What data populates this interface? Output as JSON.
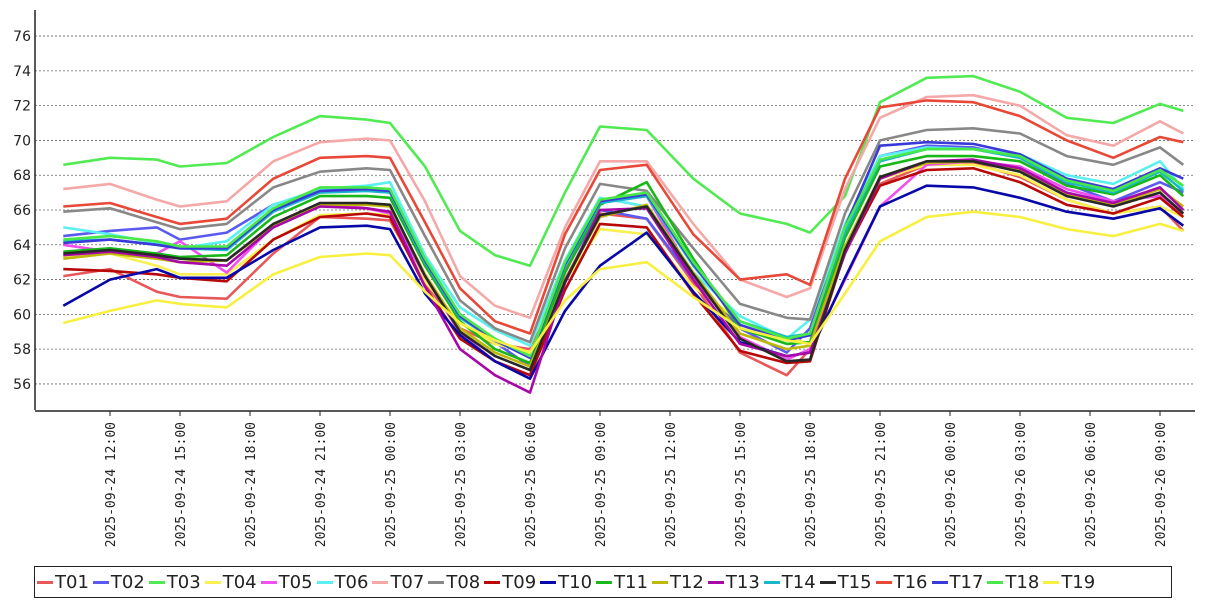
{
  "chart_data": {
    "type": "line",
    "title": "",
    "xlabel": "",
    "ylabel": "",
    "ylim": [
      54.5,
      77.5
    ],
    "yticks": [
      56,
      58,
      60,
      62,
      64,
      66,
      68,
      70,
      72,
      74,
      76
    ],
    "xlim": [
      "2025-09-24 09:00",
      "2025-09-26 10:30"
    ],
    "xticks": [
      "2025-09-24 12:00",
      "2025-09-24 15:00",
      "2025-09-24 18:00",
      "2025-09-24 21:00",
      "2025-09-25 00:00",
      "2025-09-25 03:00",
      "2025-09-25 06:00",
      "2025-09-25 09:00",
      "2025-09-25 12:00",
      "2025-09-25 15:00",
      "2025-09-25 18:00",
      "2025-09-25 21:00",
      "2025-09-26 00:00",
      "2025-09-26 03:00",
      "2025-09-26 06:00",
      "2025-09-26 09:00"
    ],
    "grid": "horizontal dotted",
    "legend_position": "bottom",
    "x": [
      "2025-09-24 10:00",
      "2025-09-24 12:00",
      "2025-09-24 14:00",
      "2025-09-24 15:00",
      "2025-09-24 17:00",
      "2025-09-24 19:00",
      "2025-09-24 21:00",
      "2025-09-24 23:00",
      "2025-09-25 00:00",
      "2025-09-25 01:30",
      "2025-09-25 03:00",
      "2025-09-25 04:30",
      "2025-09-25 06:00",
      "2025-09-25 07:30",
      "2025-09-25 09:00",
      "2025-09-25 11:00",
      "2025-09-25 13:00",
      "2025-09-25 15:00",
      "2025-09-25 17:00",
      "2025-09-25 18:00",
      "2025-09-25 19:30",
      "2025-09-25 21:00",
      "2025-09-25 23:00",
      "2025-09-26 01:00",
      "2025-09-26 03:00",
      "2025-09-26 05:00",
      "2025-09-26 07:00",
      "2025-09-26 09:00",
      "2025-09-26 10:00"
    ],
    "series": [
      {
        "name": "T01",
        "color": "#e8585a",
        "values": [
          62.2,
          62.6,
          61.3,
          61.0,
          60.9,
          63.5,
          65.6,
          65.5,
          65.4,
          61.8,
          59.2,
          58.3,
          58.0,
          62.0,
          65.8,
          65.5,
          61.8,
          57.8,
          56.5,
          58.0,
          63.5,
          67.5,
          68.6,
          68.7,
          67.9,
          66.6,
          65.8,
          66.2,
          64.8
        ]
      },
      {
        "name": "T02",
        "color": "#5a5af0",
        "values": [
          64.5,
          64.8,
          65.0,
          64.3,
          64.7,
          66.3,
          67.1,
          67.2,
          67.1,
          62.8,
          60.0,
          58.4,
          57.0,
          62.5,
          66.0,
          65.5,
          62.0,
          59.2,
          57.8,
          59.2,
          65.0,
          69.1,
          69.7,
          69.6,
          69.0,
          67.5,
          66.5,
          67.6,
          67.0
        ]
      },
      {
        "name": "T03",
        "color": "#52ea52",
        "values": [
          68.6,
          69.0,
          68.9,
          68.5,
          68.7,
          70.2,
          71.4,
          71.2,
          71.0,
          68.5,
          64.8,
          63.4,
          62.8,
          67.0,
          70.8,
          70.6,
          67.8,
          65.8,
          65.2,
          64.7,
          66.8,
          72.2,
          73.6,
          73.7,
          72.8,
          71.3,
          71.0,
          72.1,
          71.7
        ]
      },
      {
        "name": "T04",
        "color": "#f8f050",
        "values": [
          63.3,
          63.5,
          62.8,
          62.3,
          62.3,
          64.3,
          65.7,
          65.8,
          65.7,
          61.9,
          59.5,
          58.3,
          57.8,
          61.9,
          64.9,
          64.6,
          61.6,
          59.6,
          58.7,
          58.3,
          63.6,
          67.8,
          68.6,
          68.6,
          68.0,
          66.6,
          65.8,
          66.2,
          65.6
        ]
      },
      {
        "name": "T05",
        "color": "#f050f0",
        "values": [
          64.0,
          63.6,
          63.5,
          64.2,
          62.4,
          65.1,
          66.4,
          66.1,
          65.8,
          62.2,
          58.9,
          57.3,
          56.5,
          62.5,
          66.4,
          66.8,
          62.2,
          58.7,
          57.4,
          58.0,
          62.0,
          66.2,
          68.6,
          68.8,
          68.5,
          67.2,
          66.5,
          66.8,
          65.8
        ]
      },
      {
        "name": "T06",
        "color": "#5af0f0",
        "values": [
          65.0,
          64.6,
          64.1,
          63.8,
          64.2,
          66.3,
          67.2,
          67.4,
          67.6,
          63.4,
          60.4,
          59.1,
          58.2,
          63.1,
          66.7,
          66.2,
          62.4,
          59.9,
          58.6,
          59.7,
          65.2,
          69.1,
          69.6,
          69.5,
          69.2,
          68.0,
          67.5,
          68.8,
          67.2
        ]
      },
      {
        "name": "T07",
        "color": "#f4a8a8",
        "values": [
          67.2,
          67.5,
          66.6,
          66.2,
          66.5,
          68.8,
          69.9,
          70.1,
          70.0,
          66.5,
          62.2,
          60.5,
          59.8,
          65.0,
          68.8,
          68.8,
          65.2,
          62.0,
          61.0,
          61.5,
          67.2,
          71.3,
          72.5,
          72.6,
          72.0,
          70.3,
          69.7,
          71.1,
          70.4
        ]
      },
      {
        "name": "T08",
        "color": "#888888",
        "values": [
          65.9,
          66.1,
          65.3,
          64.9,
          65.2,
          67.3,
          68.2,
          68.4,
          68.3,
          64.5,
          60.8,
          59.2,
          58.4,
          63.8,
          67.5,
          67.1,
          63.8,
          60.6,
          59.8,
          59.7,
          65.8,
          70.0,
          70.6,
          70.7,
          70.4,
          69.1,
          68.6,
          69.6,
          68.6
        ]
      },
      {
        "name": "T09",
        "color": "#b80808",
        "values": [
          62.6,
          62.5,
          62.3,
          62.1,
          61.9,
          64.3,
          65.6,
          65.8,
          65.6,
          61.6,
          58.6,
          57.3,
          56.5,
          61.4,
          65.2,
          65.0,
          61.2,
          57.9,
          57.2,
          57.3,
          63.6,
          67.4,
          68.3,
          68.4,
          67.6,
          66.3,
          65.8,
          66.7,
          65.6
        ]
      },
      {
        "name": "T10",
        "color": "#0808a8",
        "values": [
          60.5,
          62.0,
          62.6,
          62.1,
          62.1,
          63.7,
          65.0,
          65.1,
          64.9,
          61.2,
          58.8,
          57.3,
          56.3,
          60.2,
          62.8,
          64.7,
          61.3,
          58.4,
          57.6,
          57.8,
          62.1,
          66.2,
          67.4,
          67.3,
          66.7,
          65.9,
          65.5,
          66.1,
          65.1
        ]
      },
      {
        "name": "T11",
        "color": "#18b818",
        "values": [
          63.6,
          63.8,
          63.5,
          63.3,
          63.4,
          65.6,
          66.8,
          66.8,
          66.7,
          62.8,
          59.6,
          58.0,
          57.2,
          62.4,
          66.3,
          67.6,
          63.2,
          59.2,
          58.3,
          58.4,
          64.4,
          68.5,
          69.1,
          69.1,
          68.8,
          67.4,
          66.9,
          68.0,
          66.8
        ]
      },
      {
        "name": "T12",
        "color": "#c0b808",
        "values": [
          63.2,
          63.5,
          63.2,
          63.0,
          63.1,
          65.1,
          66.3,
          66.3,
          66.2,
          62.3,
          59.2,
          57.8,
          57.0,
          61.9,
          65.6,
          66.3,
          62.4,
          58.9,
          58.0,
          58.2,
          63.9,
          67.9,
          68.7,
          68.8,
          68.3,
          66.9,
          66.3,
          67.2,
          66.2
        ]
      },
      {
        "name": "T13",
        "color": "#a808a8",
        "values": [
          63.4,
          63.6,
          63.3,
          63.0,
          62.8,
          65.0,
          66.2,
          66.1,
          65.9,
          61.6,
          58.0,
          56.5,
          55.5,
          61.8,
          66.0,
          66.1,
          62.0,
          58.3,
          57.6,
          57.8,
          63.5,
          67.8,
          68.8,
          68.9,
          68.4,
          67.0,
          66.4,
          67.3,
          66.0
        ]
      },
      {
        "name": "T14",
        "color": "#18b8c8",
        "values": [
          64.2,
          64.3,
          64.0,
          63.8,
          63.7,
          65.9,
          67.0,
          67.1,
          67.0,
          63.0,
          59.8,
          58.5,
          57.6,
          62.8,
          66.4,
          66.8,
          62.8,
          59.6,
          58.7,
          58.9,
          64.7,
          68.8,
          69.5,
          69.5,
          69.0,
          67.6,
          67.0,
          68.2,
          67.1
        ]
      },
      {
        "name": "T15",
        "color": "#282828",
        "values": [
          63.5,
          63.7,
          63.4,
          63.2,
          63.1,
          65.2,
          66.4,
          66.4,
          66.3,
          62.2,
          59.0,
          57.6,
          56.8,
          61.9,
          65.7,
          66.2,
          62.3,
          58.6,
          57.3,
          57.4,
          63.7,
          67.9,
          68.8,
          68.8,
          68.2,
          66.8,
          66.2,
          67.0,
          65.8
        ]
      },
      {
        "name": "T16",
        "color": "#e84838",
        "values": [
          66.2,
          66.4,
          65.6,
          65.2,
          65.5,
          67.8,
          69.0,
          69.1,
          69.0,
          65.3,
          61.5,
          59.6,
          58.9,
          64.6,
          68.3,
          68.6,
          64.6,
          62.0,
          62.3,
          61.7,
          67.8,
          71.9,
          72.3,
          72.2,
          71.4,
          70.0,
          69.0,
          70.2,
          69.9
        ]
      },
      {
        "name": "T17",
        "color": "#3a3ad8",
        "values": [
          64.1,
          64.3,
          64.0,
          63.8,
          63.8,
          66.0,
          67.1,
          67.2,
          67.1,
          63.1,
          59.9,
          58.5,
          57.5,
          62.9,
          66.5,
          66.9,
          62.9,
          59.4,
          58.5,
          58.8,
          65.0,
          69.7,
          69.9,
          69.8,
          69.2,
          67.8,
          67.2,
          68.4,
          67.8
        ]
      },
      {
        "name": "T18",
        "color": "#48e848",
        "values": [
          64.3,
          64.5,
          64.2,
          63.9,
          63.9,
          66.1,
          67.3,
          67.3,
          67.2,
          63.2,
          60.0,
          58.6,
          57.6,
          63.0,
          66.6,
          67.0,
          63.0,
          59.6,
          58.6,
          58.9,
          65.0,
          68.9,
          69.5,
          69.5,
          69.1,
          67.7,
          67.1,
          68.3,
          67.4
        ]
      },
      {
        "name": "T19",
        "color": "#f8f040",
        "values": [
          59.5,
          60.2,
          60.8,
          60.6,
          60.4,
          62.3,
          63.3,
          63.5,
          63.4,
          61.3,
          59.5,
          58.5,
          57.8,
          60.8,
          62.6,
          63.0,
          61.0,
          59.2,
          58.5,
          58.3,
          61.2,
          64.2,
          65.6,
          65.9,
          65.6,
          64.9,
          64.5,
          65.2,
          64.8
        ]
      }
    ]
  }
}
